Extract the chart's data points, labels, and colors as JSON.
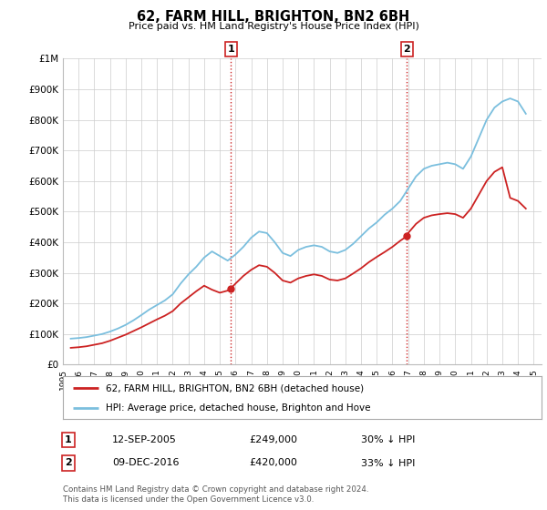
{
  "title": "62, FARM HILL, BRIGHTON, BN2 6BH",
  "subtitle": "Price paid vs. HM Land Registry's House Price Index (HPI)",
  "ylim": [
    0,
    1000000
  ],
  "yticks": [
    0,
    100000,
    200000,
    300000,
    400000,
    500000,
    600000,
    700000,
    800000,
    900000,
    1000000
  ],
  "ytick_labels": [
    "£0",
    "£100K",
    "£200K",
    "£300K",
    "£400K",
    "£500K",
    "£600K",
    "£700K",
    "£800K",
    "£900K",
    "£1M"
  ],
  "hpi_color": "#7bbfde",
  "price_color": "#cc2222",
  "vline_color": "#cc2222",
  "vline_style": ":",
  "purchase1_date": 2005.7,
  "purchase1_price": 249000,
  "purchase2_date": 2016.92,
  "purchase2_price": 420000,
  "legend_entries": [
    "62, FARM HILL, BRIGHTON, BN2 6BH (detached house)",
    "HPI: Average price, detached house, Brighton and Hove"
  ],
  "table_row1": [
    "1",
    "12-SEP-2005",
    "£249,000",
    "30% ↓ HPI"
  ],
  "table_row2": [
    "2",
    "09-DEC-2016",
    "£420,000",
    "33% ↓ HPI"
  ],
  "footer": "Contains HM Land Registry data © Crown copyright and database right 2024.\nThis data is licensed under the Open Government Licence v3.0.",
  "background_color": "#ffffff",
  "grid_color": "#cccccc",
  "hpi_data_x": [
    1995.5,
    1996.0,
    1996.5,
    1997.0,
    1997.5,
    1998.0,
    1998.5,
    1999.0,
    1999.5,
    2000.0,
    2000.5,
    2001.0,
    2001.5,
    2002.0,
    2002.5,
    2003.0,
    2003.5,
    2004.0,
    2004.5,
    2005.0,
    2005.5,
    2006.0,
    2006.5,
    2007.0,
    2007.5,
    2008.0,
    2008.5,
    2009.0,
    2009.5,
    2010.0,
    2010.5,
    2011.0,
    2011.5,
    2012.0,
    2012.5,
    2013.0,
    2013.5,
    2014.0,
    2014.5,
    2015.0,
    2015.5,
    2016.0,
    2016.5,
    2017.0,
    2017.5,
    2018.0,
    2018.5,
    2019.0,
    2019.5,
    2020.0,
    2020.5,
    2021.0,
    2021.5,
    2022.0,
    2022.5,
    2023.0,
    2023.5,
    2024.0,
    2024.5
  ],
  "hpi_data_y": [
    85000,
    87000,
    90000,
    95000,
    100000,
    108000,
    118000,
    130000,
    145000,
    162000,
    180000,
    195000,
    210000,
    230000,
    265000,
    295000,
    320000,
    350000,
    370000,
    355000,
    340000,
    360000,
    385000,
    415000,
    435000,
    430000,
    400000,
    365000,
    355000,
    375000,
    385000,
    390000,
    385000,
    370000,
    365000,
    375000,
    395000,
    420000,
    445000,
    465000,
    490000,
    510000,
    535000,
    575000,
    615000,
    640000,
    650000,
    655000,
    660000,
    655000,
    640000,
    680000,
    740000,
    800000,
    840000,
    860000,
    870000,
    860000,
    820000
  ],
  "price_data_x": [
    1995.5,
    1996.0,
    1996.5,
    1997.0,
    1997.5,
    1998.0,
    1998.5,
    1999.0,
    1999.5,
    2000.0,
    2000.5,
    2001.0,
    2001.5,
    2002.0,
    2002.5,
    2003.0,
    2003.5,
    2004.0,
    2004.5,
    2005.0,
    2005.5,
    2005.7,
    2006.0,
    2006.5,
    2007.0,
    2007.5,
    2008.0,
    2008.5,
    2009.0,
    2009.5,
    2010.0,
    2010.5,
    2011.0,
    2011.5,
    2012.0,
    2012.5,
    2013.0,
    2013.5,
    2014.0,
    2014.5,
    2015.0,
    2015.5,
    2016.0,
    2016.5,
    2016.92,
    2017.0,
    2017.5,
    2018.0,
    2018.5,
    2019.0,
    2019.5,
    2020.0,
    2020.5,
    2021.0,
    2021.5,
    2022.0,
    2022.5,
    2023.0,
    2023.5,
    2024.0,
    2024.5
  ],
  "price_data_y": [
    55000,
    57000,
    60000,
    65000,
    70000,
    78000,
    88000,
    98000,
    110000,
    122000,
    135000,
    148000,
    160000,
    175000,
    200000,
    220000,
    240000,
    258000,
    245000,
    235000,
    242000,
    249000,
    265000,
    290000,
    310000,
    325000,
    320000,
    300000,
    275000,
    268000,
    282000,
    290000,
    295000,
    290000,
    278000,
    275000,
    282000,
    298000,
    315000,
    335000,
    352000,
    368000,
    385000,
    405000,
    420000,
    430000,
    460000,
    480000,
    488000,
    492000,
    495000,
    492000,
    480000,
    510000,
    555000,
    600000,
    630000,
    645000,
    545000,
    535000,
    510000
  ]
}
